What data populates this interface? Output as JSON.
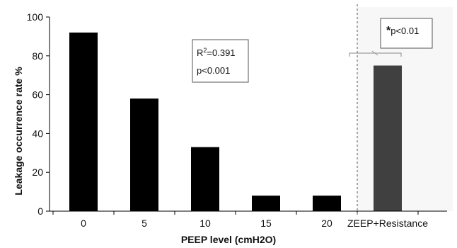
{
  "chart_data": {
    "type": "bar",
    "title": "",
    "xlabel": "PEEP level (cmH2O)",
    "ylabel": "Leakage occurrence rate %",
    "ylim": [
      0,
      100
    ],
    "yticks": [
      "0",
      "20",
      "40",
      "60",
      "80",
      "100"
    ],
    "categories": [
      "0",
      "5",
      "10",
      "15",
      "20",
      "ZEEP+Resistance"
    ],
    "values": [
      92,
      58,
      33,
      8,
      8,
      75
    ],
    "bar_colors": [
      "#000000",
      "#000000",
      "#000000",
      "#000000",
      "#000000",
      "#404040"
    ],
    "grid": false,
    "legend": "none",
    "annotations": {
      "r2_prefix": "R",
      "r2_sup": "2",
      "r2_value": "=0.391",
      "p_main": "p<0.001",
      "star": "*",
      "p_compare": "p<0.01"
    },
    "colors": {
      "bar": "#000000",
      "highlight_bar": "#404040",
      "highlight_background": "#f7f7f7",
      "axis": "#000000",
      "divider": "#555555",
      "bracket": "#888888"
    }
  }
}
